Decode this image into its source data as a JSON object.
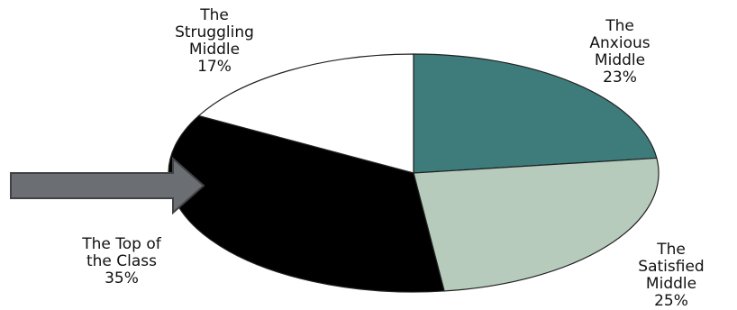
{
  "chart_data": {
    "type": "pie",
    "title": "",
    "unit": "%",
    "slices": [
      {
        "name": "The\nAnxious\nMiddle",
        "display_value": "23%",
        "value": 23,
        "color": "#3e7b7b"
      },
      {
        "name": "The\nSatisfied\nMiddle",
        "display_value": "25%",
        "value": 25,
        "color": "#b7cbbd"
      },
      {
        "name": "The Top of\nthe Class",
        "display_value": "35%",
        "value": 35,
        "color": "#000000"
      },
      {
        "name": "The\nStruggling\nMiddle",
        "display_value": "17%",
        "value": 17,
        "color": "#ffffff"
      }
    ],
    "start_at": "top",
    "direction": "clockwise",
    "slice_outline_color": "#222222",
    "arrow": {
      "points_to": "The Top of the Class",
      "direction": "right",
      "color": "#6b6e72",
      "outline": "#404244"
    }
  }
}
